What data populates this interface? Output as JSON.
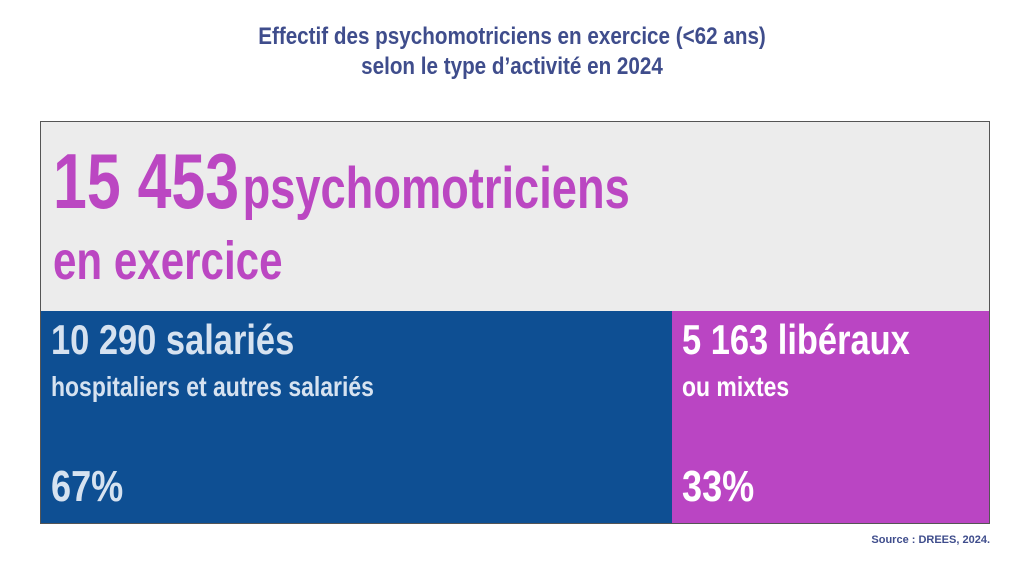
{
  "title": {
    "line1": "Effectif des psychomotriciens en exercice (<62 ans)",
    "line2": "selon le type d’activité en 2024"
  },
  "total": {
    "value": "15 453",
    "label": "psychomotriciens",
    "label2": "en exercice"
  },
  "salaried": {
    "value": "10 290",
    "label": "salariés",
    "sublabel": "hospitaliers et autres salariés",
    "percent": "67%"
  },
  "liberal": {
    "value": "5 163",
    "label": "libéraux",
    "sublabel": "ou mixtes",
    "percent": "33%"
  },
  "source": "Source : DREES, 2024.",
  "colors": {
    "title": "#3f4d8c",
    "panel_background": "#ececec",
    "salaried": "#0e4f93",
    "liberal": "#ba45c3",
    "total_text": "#bb47c2"
  },
  "chart_data": {
    "type": "bar",
    "categories": [
      "10 290 salariés",
      "5 163 libéraux"
    ],
    "values": [
      10290,
      5163
    ],
    "percents": [
      67,
      33
    ],
    "total": 15453
  }
}
